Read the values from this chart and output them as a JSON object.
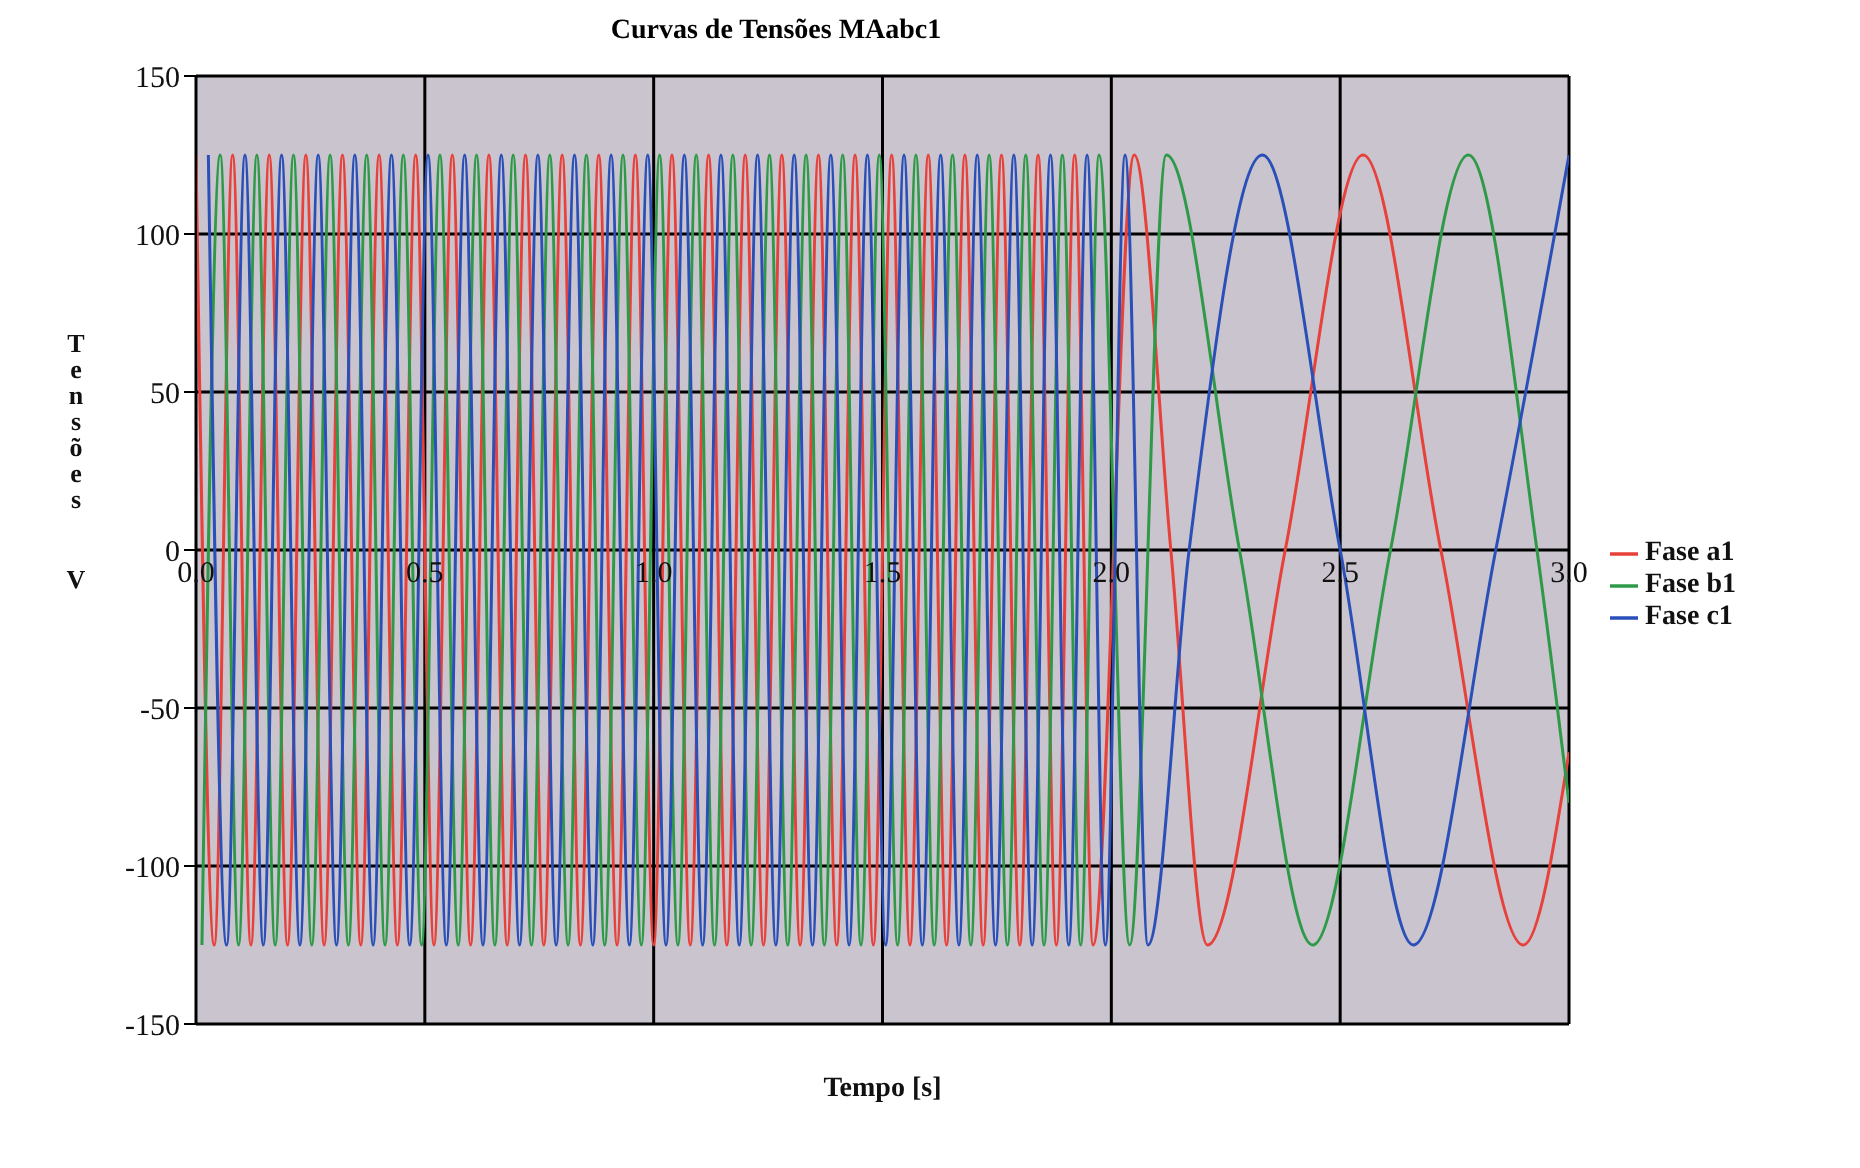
{
  "chart_data": {
    "type": "line",
    "title": "Curvas de Tensões MAabc1",
    "xlabel": "Tempo  [s]",
    "ylabel": "Tensões V",
    "xlim": [
      0,
      3
    ],
    "xticks": [
      {
        "value": 0,
        "label": "0.0"
      },
      {
        "value": 0.5,
        "label": "0.5"
      },
      {
        "value": 1,
        "label": "1.0"
      },
      {
        "value": 1.5,
        "label": "1.5"
      },
      {
        "value": 2,
        "label": "2.0"
      },
      {
        "value": 2.5,
        "label": "2.5"
      },
      {
        "value": 3,
        "label": "3.0"
      }
    ],
    "ylim": [
      -150,
      150
    ],
    "yticks": [
      -150,
      -100,
      -50,
      0,
      50,
      100,
      150
    ],
    "grid": true,
    "legend": "right",
    "series": [
      {
        "name": "Fase a1",
        "color": "#e8403a",
        "x": [
          0,
          0.04,
          0.08,
          0.12,
          0.16,
          0.2,
          0.24,
          0.28,
          0.32,
          0.36,
          0.4,
          0.44,
          0.48,
          0.52,
          0.56,
          0.6,
          0.64,
          0.68,
          0.72,
          0.76,
          0.8,
          0.84,
          0.88,
          0.92,
          0.96,
          1,
          1.04,
          1.08,
          1.12,
          1.16,
          1.2,
          1.24,
          1.28,
          1.32,
          1.36,
          1.4,
          1.44,
          1.48,
          1.52,
          1.56,
          1.6,
          1.64,
          1.68,
          1.72,
          1.76,
          1.8,
          1.84,
          1.88,
          1.92,
          1.96,
          2.05,
          2.13,
          2.21,
          2.38,
          2.55,
          2.72,
          2.9,
          3
        ],
        "values": [
          125,
          -125,
          125,
          -125,
          125,
          -125,
          125,
          -125,
          125,
          -125,
          125,
          -125,
          125,
          -125,
          125,
          -125,
          125,
          -125,
          125,
          -125,
          125,
          -125,
          125,
          -125,
          125,
          -125,
          125,
          -125,
          125,
          -125,
          125,
          -125,
          125,
          -125,
          125,
          -125,
          125,
          -125,
          125,
          -125,
          125,
          -125,
          125,
          -125,
          125,
          -125,
          125,
          -125,
          125,
          -125,
          125,
          0,
          -125,
          0,
          125,
          0,
          -125,
          -64
        ]
      },
      {
        "name": "Fase b1",
        "color": "#2e9a48",
        "x": [
          0.013,
          0.053,
          0.093,
          0.133,
          0.173,
          0.213,
          0.253,
          0.293,
          0.333,
          0.373,
          0.413,
          0.453,
          0.493,
          0.533,
          0.573,
          0.613,
          0.653,
          0.693,
          0.733,
          0.773,
          0.813,
          0.853,
          0.893,
          0.933,
          0.973,
          1.013,
          1.053,
          1.093,
          1.133,
          1.173,
          1.213,
          1.253,
          1.293,
          1.333,
          1.373,
          1.413,
          1.453,
          1.493,
          1.533,
          1.573,
          1.613,
          1.653,
          1.693,
          1.733,
          1.773,
          1.813,
          1.853,
          1.893,
          1.933,
          1.973,
          2.04,
          2.12,
          2.28,
          2.44,
          2.61,
          2.78,
          2.93,
          3
        ],
        "values": [
          -125,
          125,
          -125,
          125,
          -125,
          125,
          -125,
          125,
          -125,
          125,
          -125,
          125,
          -125,
          125,
          -125,
          125,
          -125,
          125,
          -125,
          125,
          -125,
          125,
          -125,
          125,
          -125,
          125,
          -125,
          125,
          -125,
          125,
          -125,
          125,
          -125,
          125,
          -125,
          125,
          -125,
          125,
          -125,
          125,
          -125,
          125,
          -125,
          125,
          -125,
          125,
          -125,
          125,
          -125,
          125,
          -125,
          125,
          0,
          -125,
          0,
          125,
          0,
          -80
        ]
      },
      {
        "name": "Fase c1",
        "color": "#2a4fb8",
        "x": [
          0.027,
          0.067,
          0.107,
          0.147,
          0.187,
          0.227,
          0.267,
          0.307,
          0.347,
          0.387,
          0.427,
          0.467,
          0.507,
          0.547,
          0.587,
          0.627,
          0.667,
          0.707,
          0.747,
          0.787,
          0.827,
          0.867,
          0.907,
          0.947,
          0.987,
          1.027,
          1.067,
          1.107,
          1.147,
          1.187,
          1.227,
          1.267,
          1.307,
          1.347,
          1.387,
          1.427,
          1.467,
          1.507,
          1.547,
          1.587,
          1.627,
          1.667,
          1.707,
          1.747,
          1.787,
          1.827,
          1.867,
          1.907,
          1.947,
          1.987,
          2.03,
          2.08,
          2.17,
          2.33,
          2.5,
          2.66,
          2.84,
          3
        ],
        "values": [
          125,
          -125,
          125,
          -125,
          125,
          -125,
          125,
          -125,
          125,
          -125,
          125,
          -125,
          125,
          -125,
          125,
          -125,
          125,
          -125,
          125,
          -125,
          125,
          -125,
          125,
          -125,
          125,
          -125,
          125,
          -125,
          125,
          -125,
          125,
          -125,
          125,
          -125,
          125,
          -125,
          125,
          -125,
          125,
          -125,
          125,
          -125,
          125,
          -125,
          125,
          -125,
          125,
          -125,
          125,
          -125,
          125,
          -125,
          0,
          125,
          0,
          -125,
          0,
          125
        ]
      }
    ]
  }
}
